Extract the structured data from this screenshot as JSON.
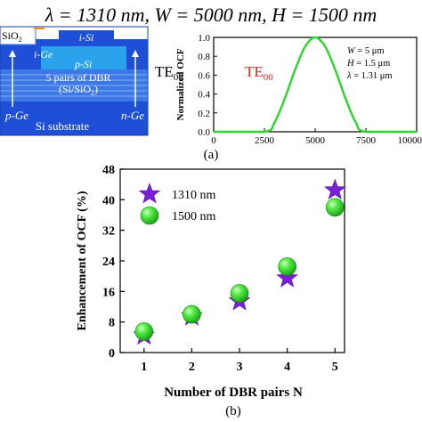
{
  "header": {
    "equation": "λ = 1310 nm, W = 5000 nm, H = 1500 nm"
  },
  "device": {
    "labels": {
      "sio2": "SiO",
      "sio2_sub": "2",
      "isi": "i-Si",
      "ige": "i-Ge",
      "psi": "p-Si",
      "dbr1": "5 pairs of DBR",
      "dbr2": "(Si/SiO",
      "dbr2_sub": "2",
      "dbr2_end": ")",
      "pge": "p-Ge",
      "nge": "n-Ge",
      "substrate": "Si substrate"
    },
    "mode_label": "TE",
    "mode_sub": "00",
    "colors": {
      "substrate": "#1f4fd6",
      "layers": "#3c78e6",
      "core": "#2aa2ec",
      "sio2": "#ffffff"
    }
  },
  "chart_data": [
    {
      "id": "a",
      "type": "line",
      "title": "TE",
      "title_sub": "00",
      "title_color": "#e0261e",
      "xlabel": "",
      "ylabel": "Normalized OCF",
      "xlim": [
        0,
        10000
      ],
      "ylim": [
        0,
        1.0
      ],
      "xticks": [
        0,
        2500,
        5000,
        7500,
        10000
      ],
      "yticks": [
        0.0,
        0.2,
        0.4,
        0.6,
        0.8,
        1.0
      ],
      "xtick_labels": [
        "0",
        "2500",
        "5000",
        "7500",
        "10000"
      ],
      "ytick_labels": [
        "0.0",
        "0.2",
        "0.4",
        "0.6",
        "0.8",
        "1.0"
      ],
      "series": [
        {
          "color": "#2ad62a",
          "x": [
            0,
            2500,
            3000,
            3500,
            4000,
            4500,
            5000,
            5500,
            6000,
            6500,
            7000,
            7500,
            10000
          ],
          "y": [
            0,
            0,
            0.1,
            0.35,
            0.65,
            0.9,
            1.0,
            0.9,
            0.65,
            0.35,
            0.1,
            0,
            0
          ]
        }
      ],
      "annotations": [
        {
          "var": "W",
          "rest": " = 5 μm"
        },
        {
          "var": "H",
          "rest": " = 1.5 μm"
        },
        {
          "var": "λ",
          "rest": " = 1.31 μm"
        }
      ],
      "caption": "(a)"
    },
    {
      "id": "b",
      "type": "scatter",
      "xlabel": "Number of DBR pairs N",
      "ylabel": "Enhancement of OCF (%)",
      "xlim": [
        0.5,
        5.2
      ],
      "ylim": [
        0,
        48
      ],
      "xticks": [
        1,
        2,
        3,
        4,
        5
      ],
      "yticks": [
        0,
        8,
        16,
        24,
        32,
        40,
        48
      ],
      "xtick_labels": [
        "1",
        "2",
        "3",
        "4",
        "5"
      ],
      "ytick_labels": [
        "0",
        "8",
        "16",
        "24",
        "32",
        "40",
        "48"
      ],
      "series": [
        {
          "name": "1310 nm",
          "marker": "star",
          "color": "#7a1fd6",
          "x": [
            1,
            2,
            3,
            4,
            5
          ],
          "y": [
            4.5,
            9.5,
            13.5,
            19.5,
            42.5
          ]
        },
        {
          "name": "1500 nm",
          "marker": "sphere",
          "color": "#2ee02e",
          "x": [
            1,
            2,
            3,
            4,
            5
          ],
          "y": [
            5.5,
            10.0,
            15.5,
            22.5,
            38.0
          ]
        }
      ],
      "legend": "top-left",
      "caption": "(b)"
    }
  ]
}
